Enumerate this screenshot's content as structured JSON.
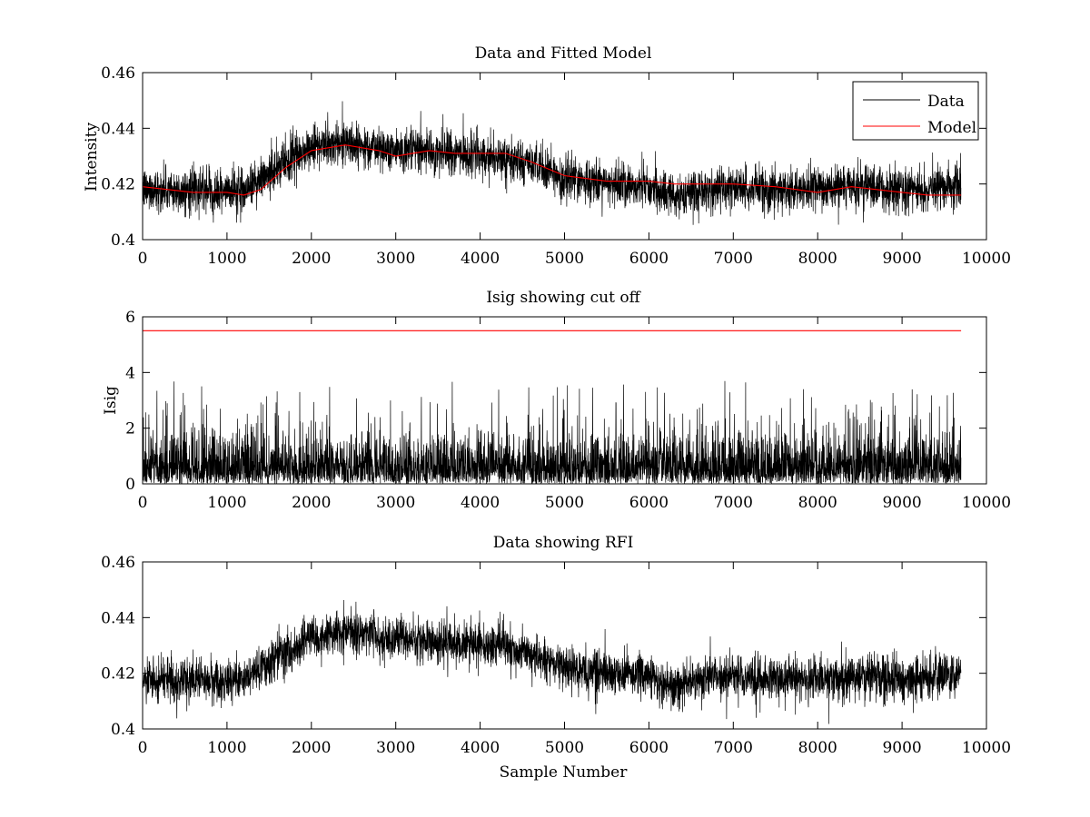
{
  "colors": {
    "data": "#000000",
    "model": "#ff0000",
    "cutoff": "#ff0000",
    "background": "#ffffff"
  },
  "chart_data": [
    {
      "id": "data-model",
      "type": "line",
      "title": "Data and Fitted Model",
      "xlabel": "",
      "ylabel": "Intensity",
      "xlim": [
        0,
        10000
      ],
      "ylim": [
        0.4,
        0.46
      ],
      "xticks": [
        0,
        1000,
        2000,
        3000,
        4000,
        5000,
        6000,
        7000,
        8000,
        9000,
        10000
      ],
      "yticks": [
        0.4,
        0.42,
        0.44,
        0.46
      ],
      "ytick_labels": [
        "0.4",
        "0.42",
        "0.44",
        "0.46"
      ],
      "legend": {
        "placement": "top-right",
        "entries": [
          "Data",
          "Model"
        ]
      },
      "sample_count": 9700,
      "series": [
        {
          "name": "Data",
          "kind": "noisy",
          "color": "#000000",
          "noise_amplitude": 0.0085,
          "trend": {
            "x": [
              0,
              1000,
              1200,
              1500,
              2000,
              2400,
              2800,
              3200,
              3700,
              4200,
              4600,
              5000,
              5500,
              6000,
              6300,
              6500,
              7000,
              7500,
              8000,
              8500,
              9000,
              9300,
              9700
            ],
            "y": [
              0.418,
              0.417,
              0.418,
              0.424,
              0.433,
              0.435,
              0.433,
              0.432,
              0.431,
              0.43,
              0.427,
              0.422,
              0.42,
              0.419,
              0.415,
              0.417,
              0.419,
              0.418,
              0.418,
              0.419,
              0.418,
              0.418,
              0.42
            ]
          }
        },
        {
          "name": "Model",
          "kind": "smooth",
          "color": "#ff0000",
          "x": [
            0,
            300,
            600,
            1000,
            1200,
            1400,
            1700,
            2000,
            2200,
            2400,
            2600,
            2800,
            3000,
            3200,
            3400,
            3700,
            4000,
            4300,
            4600,
            5000,
            5500,
            6000,
            6300,
            6600,
            7000,
            7500,
            8000,
            8400,
            8700,
            9000,
            9300,
            9700
          ],
          "y": [
            0.419,
            0.418,
            0.417,
            0.417,
            0.416,
            0.418,
            0.426,
            0.432,
            0.433,
            0.434,
            0.433,
            0.432,
            0.43,
            0.431,
            0.432,
            0.431,
            0.431,
            0.431,
            0.428,
            0.423,
            0.421,
            0.421,
            0.42,
            0.42,
            0.42,
            0.419,
            0.417,
            0.419,
            0.418,
            0.417,
            0.416,
            0.416
          ]
        }
      ]
    },
    {
      "id": "isig",
      "type": "line",
      "title": "Isig showing cut off",
      "xlabel": "",
      "ylabel": "Isig",
      "xlim": [
        0,
        10000
      ],
      "ylim": [
        0,
        6
      ],
      "xticks": [
        0,
        1000,
        2000,
        3000,
        4000,
        5000,
        6000,
        7000,
        8000,
        9000,
        10000
      ],
      "yticks": [
        0,
        2,
        4,
        6
      ],
      "ytick_labels": [
        "0",
        "2",
        "4",
        "6"
      ],
      "sample_count": 9700,
      "series": [
        {
          "kind": "abs-noise",
          "color": "#000000",
          "typical_max": 2.2,
          "peak_max": 3.7
        },
        {
          "kind": "hline",
          "color": "#ff0000",
          "x": [
            0,
            9700
          ],
          "y": [
            5.5,
            5.5
          ]
        }
      ]
    },
    {
      "id": "rfi",
      "type": "line",
      "title": "Data showing RFI",
      "xlabel": "Sample Number",
      "ylabel": "",
      "xlim": [
        0,
        10000
      ],
      "ylim": [
        0.4,
        0.46
      ],
      "xticks": [
        0,
        1000,
        2000,
        3000,
        4000,
        5000,
        6000,
        7000,
        8000,
        9000,
        10000
      ],
      "yticks": [
        0.4,
        0.42,
        0.44,
        0.46
      ],
      "ytick_labels": [
        "0.4",
        "0.42",
        "0.44",
        "0.46"
      ],
      "sample_count": 9700,
      "series": [
        {
          "kind": "noisy",
          "color": "#000000",
          "noise_amplitude": 0.0085,
          "trend": {
            "x": [
              0,
              1000,
              1200,
              1500,
              2000,
              2400,
              2800,
              3200,
              3700,
              4200,
              4600,
              5000,
              5500,
              6000,
              6300,
              6500,
              7000,
              7500,
              8000,
              8500,
              9000,
              9300,
              9700
            ],
            "y": [
              0.418,
              0.417,
              0.418,
              0.424,
              0.433,
              0.435,
              0.433,
              0.432,
              0.431,
              0.43,
              0.427,
              0.422,
              0.42,
              0.419,
              0.415,
              0.417,
              0.419,
              0.418,
              0.418,
              0.419,
              0.418,
              0.418,
              0.42
            ]
          }
        }
      ]
    }
  ]
}
